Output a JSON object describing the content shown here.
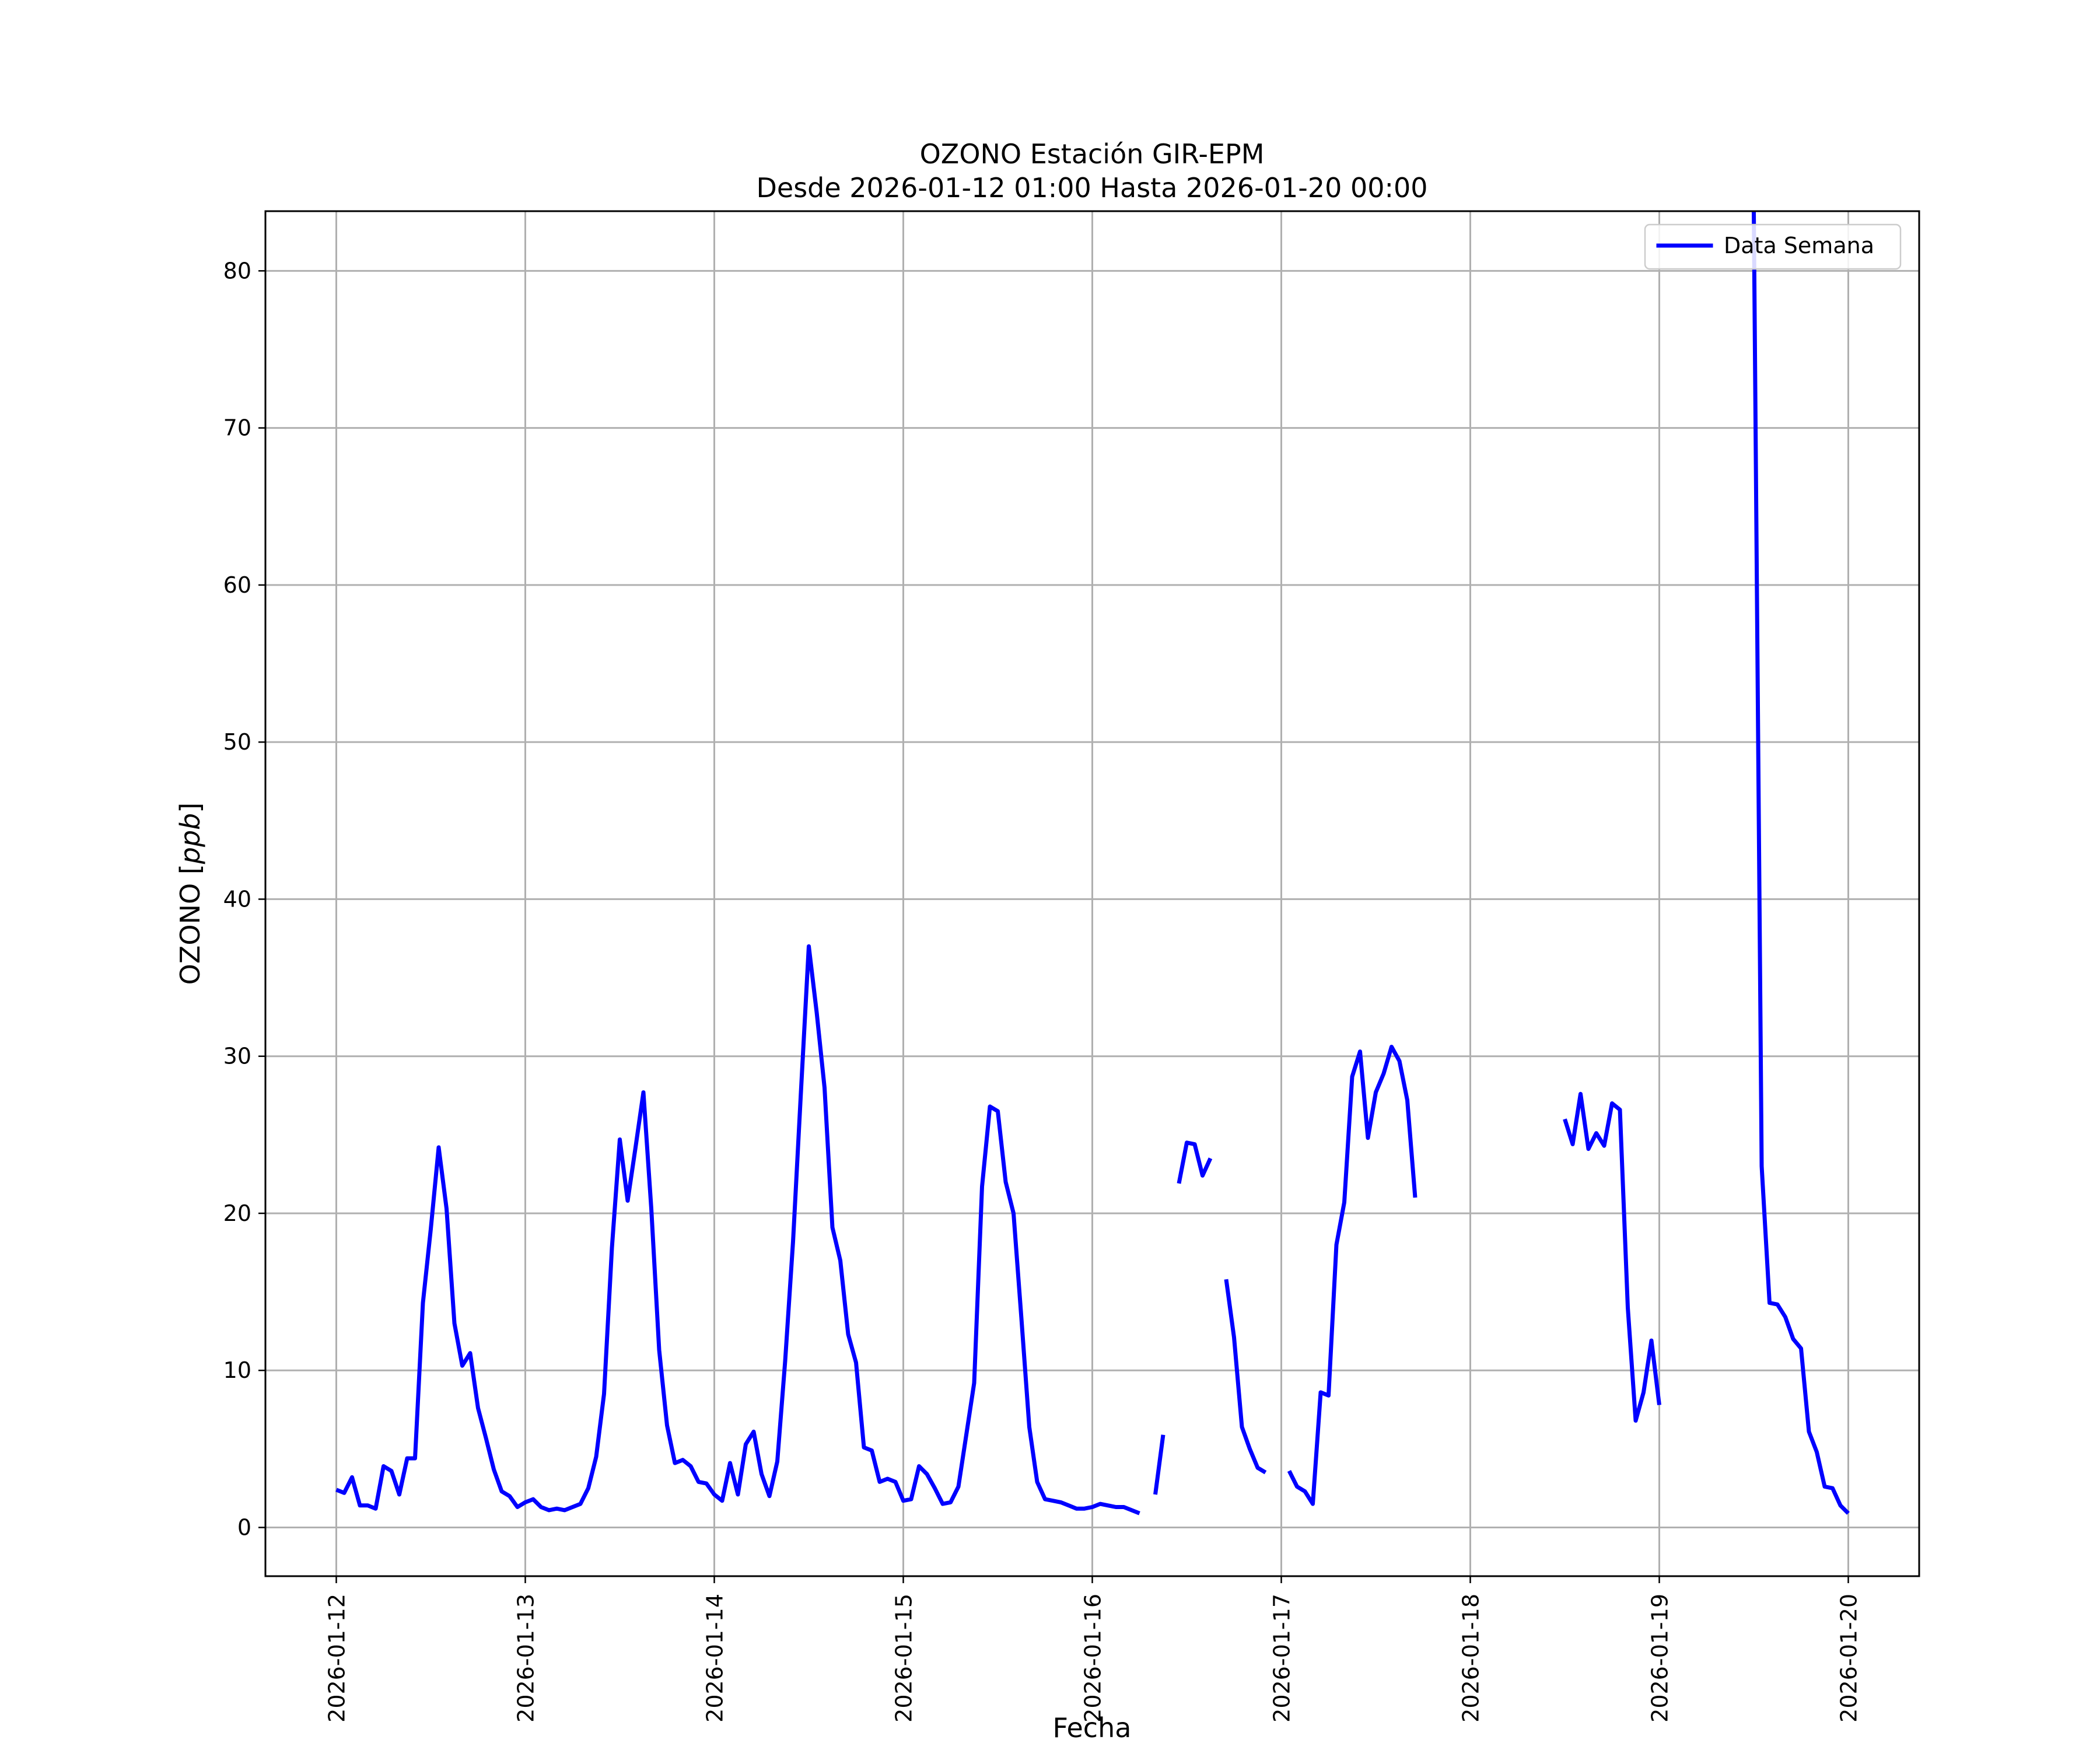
{
  "chart_data": {
    "type": "line",
    "title": "OZONO Estación GIR-EPM",
    "subtitle": "Desde 2026-01-12 01:00 Hasta 2026-01-20 00:00",
    "xlabel": "Fecha",
    "ylabel": "OZONO [ppb]",
    "ylabel_main": "OZONO",
    "ylabel_unit": "ppb",
    "xlim": [
      "2026-01-11 15:00",
      "2026-01-20 09:00"
    ],
    "ylim": [
      -3.1,
      83.8
    ],
    "x_ticks": [
      "2026-01-12",
      "2026-01-13",
      "2026-01-14",
      "2026-01-15",
      "2026-01-16",
      "2026-01-17",
      "2026-01-18",
      "2026-01-19",
      "2026-01-20"
    ],
    "y_ticks": [
      0,
      10,
      20,
      30,
      40,
      50,
      60,
      70,
      80
    ],
    "grid": true,
    "legend_position": "upper right",
    "line_color": "#0000ff",
    "series": [
      {
        "name": "Data Semana",
        "color": "#0000ff",
        "points": [
          [
            "2026-01-12 00:00",
            2.4
          ],
          [
            "2026-01-12 01:00",
            2.2
          ],
          [
            "2026-01-12 02:00",
            3.2
          ],
          [
            "2026-01-12 03:00",
            1.4
          ],
          [
            "2026-01-12 04:00",
            1.4
          ],
          [
            "2026-01-12 05:00",
            1.2
          ],
          [
            "2026-01-12 06:00",
            3.9
          ],
          [
            "2026-01-12 07:00",
            3.6
          ],
          [
            "2026-01-12 08:00",
            2.1
          ],
          [
            "2026-01-12 09:00",
            4.4
          ],
          [
            "2026-01-12 10:00",
            4.4
          ],
          [
            "2026-01-12 11:00",
            14.3
          ],
          [
            "2026-01-12 12:00",
            19.0
          ],
          [
            "2026-01-12 13:00",
            24.2
          ],
          [
            "2026-01-12 14:00",
            20.3
          ],
          [
            "2026-01-12 15:00",
            13.0
          ],
          [
            "2026-01-12 16:00",
            10.3
          ],
          [
            "2026-01-12 17:00",
            11.1
          ],
          [
            "2026-01-12 18:00",
            7.6
          ],
          [
            "2026-01-12 19:00",
            5.7
          ],
          [
            "2026-01-12 20:00",
            3.7
          ],
          [
            "2026-01-12 21:00",
            2.3
          ],
          [
            "2026-01-12 22:00",
            2.0
          ],
          [
            "2026-01-12 23:00",
            1.3
          ],
          [
            "2026-01-13 00:00",
            1.6
          ],
          [
            "2026-01-13 01:00",
            1.8
          ],
          [
            "2026-01-13 02:00",
            1.3
          ],
          [
            "2026-01-13 03:00",
            1.1
          ],
          [
            "2026-01-13 04:00",
            1.2
          ],
          [
            "2026-01-13 05:00",
            1.1
          ],
          [
            "2026-01-13 06:00",
            1.3
          ],
          [
            "2026-01-13 07:00",
            1.5
          ],
          [
            "2026-01-13 08:00",
            2.5
          ],
          [
            "2026-01-13 09:00",
            4.5
          ],
          [
            "2026-01-13 10:00",
            8.5
          ],
          [
            "2026-01-13 11:00",
            17.8
          ],
          [
            "2026-01-13 12:00",
            24.7
          ],
          [
            "2026-01-13 13:00",
            20.8
          ],
          [
            "2026-01-13 14:00",
            24.2
          ],
          [
            "2026-01-13 15:00",
            27.7
          ],
          [
            "2026-01-13 16:00",
            20.3
          ],
          [
            "2026-01-13 17:00",
            11.3
          ],
          [
            "2026-01-13 18:00",
            6.5
          ],
          [
            "2026-01-13 19:00",
            4.1
          ],
          [
            "2026-01-13 20:00",
            4.3
          ],
          [
            "2026-01-13 21:00",
            3.9
          ],
          [
            "2026-01-13 22:00",
            2.9
          ],
          [
            "2026-01-13 23:00",
            2.8
          ],
          [
            "2026-01-14 00:00",
            2.1
          ],
          [
            "2026-01-14 01:00",
            1.7
          ],
          [
            "2026-01-14 02:00",
            4.1
          ],
          [
            "2026-01-14 03:00",
            2.1
          ],
          [
            "2026-01-14 04:00",
            5.3
          ],
          [
            "2026-01-14 05:00",
            6.1
          ],
          [
            "2026-01-14 06:00",
            3.4
          ],
          [
            "2026-01-14 07:00",
            2.0
          ],
          [
            "2026-01-14 08:00",
            4.2
          ],
          [
            "2026-01-14 09:00",
            10.6
          ],
          [
            "2026-01-14 10:00",
            18.2
          ],
          [
            "2026-01-14 11:00",
            27.7
          ],
          [
            "2026-01-14 12:00",
            37.0
          ],
          [
            "2026-01-14 13:00",
            32.8
          ],
          [
            "2026-01-14 14:00",
            28.0
          ],
          [
            "2026-01-14 15:00",
            19.1
          ],
          [
            "2026-01-14 16:00",
            17.0
          ],
          [
            "2026-01-14 17:00",
            12.3
          ],
          [
            "2026-01-14 18:00",
            10.5
          ],
          [
            "2026-01-14 19:00",
            5.1
          ],
          [
            "2026-01-14 20:00",
            4.9
          ],
          [
            "2026-01-14 21:00",
            2.9
          ],
          [
            "2026-01-14 22:00",
            3.1
          ],
          [
            "2026-01-14 23:00",
            2.9
          ],
          [
            "2026-01-15 00:00",
            1.7
          ],
          [
            "2026-01-15 01:00",
            1.8
          ],
          [
            "2026-01-15 02:00",
            3.9
          ],
          [
            "2026-01-15 03:00",
            3.4
          ],
          [
            "2026-01-15 04:00",
            2.5
          ],
          [
            "2026-01-15 05:00",
            1.5
          ],
          [
            "2026-01-15 06:00",
            1.6
          ],
          [
            "2026-01-15 07:00",
            2.6
          ],
          [
            "2026-01-15 08:00",
            5.9
          ],
          [
            "2026-01-15 09:00",
            9.2
          ],
          [
            "2026-01-15 10:00",
            21.7
          ],
          [
            "2026-01-15 11:00",
            26.8
          ],
          [
            "2026-01-15 12:00",
            26.5
          ],
          [
            "2026-01-15 13:00",
            22.0
          ],
          [
            "2026-01-15 14:00",
            20.0
          ],
          [
            "2026-01-15 15:00",
            13.3
          ],
          [
            "2026-01-15 16:00",
            6.4
          ],
          [
            "2026-01-15 17:00",
            2.9
          ],
          [
            "2026-01-15 18:00",
            1.8
          ],
          [
            "2026-01-15 19:00",
            1.7
          ],
          [
            "2026-01-15 20:00",
            1.6
          ],
          [
            "2026-01-15 21:00",
            1.4
          ],
          [
            "2026-01-15 22:00",
            1.2
          ],
          [
            "2026-01-15 23:00",
            1.2
          ],
          [
            "2026-01-16 00:00",
            1.3
          ],
          [
            "2026-01-16 01:00",
            1.5
          ],
          [
            "2026-01-16 02:00",
            1.4
          ],
          [
            "2026-01-16 03:00",
            1.3
          ],
          [
            "2026-01-16 04:00",
            1.3
          ],
          [
            "2026-01-16 05:00",
            1.1
          ],
          [
            "2026-01-16 06:00",
            0.9
          ],
          null,
          [
            "2026-01-16 08:00",
            2.1
          ],
          [
            "2026-01-16 09:00",
            5.9
          ],
          null,
          [
            "2026-01-16 11:00",
            21.9
          ],
          [
            "2026-01-16 12:00",
            24.5
          ],
          [
            "2026-01-16 13:00",
            24.4
          ],
          [
            "2026-01-16 14:00",
            22.4
          ],
          [
            "2026-01-16 15:00",
            23.5
          ],
          null,
          [
            "2026-01-16 17:00",
            15.8
          ],
          [
            "2026-01-16 18:00",
            12.1
          ],
          [
            "2026-01-16 19:00",
            6.4
          ],
          [
            "2026-01-16 20:00",
            5.0
          ],
          [
            "2026-01-16 21:00",
            3.8
          ],
          [
            "2026-01-16 22:00",
            3.5
          ],
          null,
          [
            "2026-01-17 01:00",
            3.6
          ],
          [
            "2026-01-17 02:00",
            2.6
          ],
          [
            "2026-01-17 03:00",
            2.3
          ],
          [
            "2026-01-17 04:00",
            1.5
          ],
          [
            "2026-01-17 05:00",
            8.6
          ],
          [
            "2026-01-17 06:00",
            8.4
          ],
          [
            "2026-01-17 07:00",
            18.0
          ],
          [
            "2026-01-17 08:00",
            20.7
          ],
          [
            "2026-01-17 09:00",
            28.7
          ],
          [
            "2026-01-17 10:00",
            30.3
          ],
          [
            "2026-01-17 11:00",
            24.8
          ],
          [
            "2026-01-17 12:00",
            27.7
          ],
          [
            "2026-01-17 13:00",
            28.9
          ],
          [
            "2026-01-17 14:00",
            30.6
          ],
          [
            "2026-01-17 15:00",
            29.7
          ],
          [
            "2026-01-17 16:00",
            27.2
          ],
          [
            "2026-01-17 17:00",
            21.0
          ],
          null,
          [
            "2026-01-18 12:00",
            26.0
          ],
          [
            "2026-01-18 13:00",
            24.4
          ],
          [
            "2026-01-18 14:00",
            27.6
          ],
          [
            "2026-01-18 15:00",
            24.1
          ],
          [
            "2026-01-18 16:00",
            25.1
          ],
          [
            "2026-01-18 17:00",
            24.3
          ],
          [
            "2026-01-18 18:00",
            27.0
          ],
          [
            "2026-01-18 19:00",
            26.6
          ],
          [
            "2026-01-18 20:00",
            14.0
          ],
          [
            "2026-01-18 21:00",
            6.8
          ],
          [
            "2026-01-18 22:00",
            8.6
          ],
          [
            "2026-01-18 23:00",
            11.9
          ],
          [
            "2026-01-19 00:00",
            7.8
          ],
          null,
          [
            "2026-01-19 12:00",
            83.8
          ],
          [
            "2026-01-19 13:00",
            23.0
          ],
          [
            "2026-01-19 14:00",
            14.3
          ],
          [
            "2026-01-19 15:00",
            14.2
          ],
          [
            "2026-01-19 16:00",
            13.4
          ],
          [
            "2026-01-19 17:00",
            12.0
          ],
          [
            "2026-01-19 18:00",
            11.4
          ],
          [
            "2026-01-19 19:00",
            6.1
          ],
          [
            "2026-01-19 20:00",
            4.8
          ],
          [
            "2026-01-19 21:00",
            2.6
          ],
          [
            "2026-01-19 22:00",
            2.5
          ],
          [
            "2026-01-19 23:00",
            1.4
          ],
          [
            "2026-01-20 00:00",
            0.9
          ]
        ]
      }
    ]
  }
}
